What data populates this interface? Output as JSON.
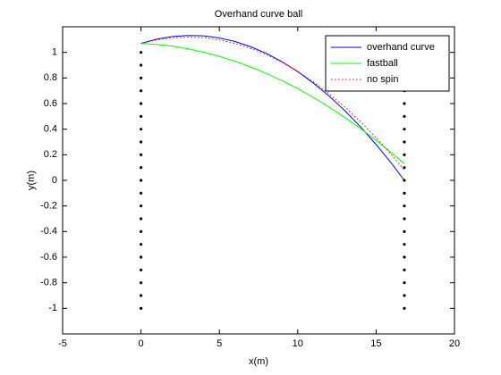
{
  "chart_data": {
    "type": "line",
    "title": "Overhand curve ball",
    "xlabel": "x(m)",
    "ylabel": "y(m)",
    "xlim": [
      -5,
      20
    ],
    "xticks": [
      -5,
      0,
      5,
      10,
      15,
      20
    ],
    "ylim": [
      -1.2,
      1.2
    ],
    "yticks": [
      -1,
      -0.8,
      -0.6,
      -0.4,
      -0.2,
      0,
      0.2,
      0.4,
      0.6,
      0.8,
      1
    ],
    "legend": "upper right",
    "series": [
      {
        "name": "overhand curve",
        "color": "#0000ff",
        "linestyle": "solid",
        "x": [
          0,
          1,
          2,
          3,
          4,
          5,
          6,
          7,
          8,
          9,
          10,
          11,
          12,
          13,
          14,
          15,
          16,
          16.8
        ],
        "values": [
          1.07,
          1.103,
          1.124,
          1.132,
          1.129,
          1.113,
          1.085,
          1.044,
          0.992,
          0.927,
          0.85,
          0.76,
          0.659,
          0.545,
          0.419,
          0.28,
          0.13,
          0
        ]
      },
      {
        "name": "fastball",
        "color": "#00ff00",
        "linestyle": "solid",
        "x": [
          0,
          1,
          2,
          3,
          4,
          5,
          6,
          7,
          8,
          9,
          10,
          11,
          12,
          13,
          14,
          15,
          16,
          16.8
        ],
        "values": [
          1.07,
          1.062,
          1.048,
          1.028,
          1.001,
          0.969,
          0.931,
          0.886,
          0.836,
          0.779,
          0.717,
          0.648,
          0.573,
          0.492,
          0.406,
          0.313,
          0.214,
          0.13
        ]
      },
      {
        "name": "no spin",
        "color": "#ff0000",
        "linestyle": "dotted",
        "x": [
          0,
          1,
          2,
          3,
          4,
          5,
          6,
          7,
          8,
          9,
          10,
          11,
          12,
          13,
          14,
          15,
          16,
          16.8
        ],
        "values": [
          1.07,
          1.097,
          1.114,
          1.119,
          1.114,
          1.097,
          1.07,
          1.031,
          0.982,
          0.922,
          0.851,
          0.769,
          0.677,
          0.573,
          0.459,
          0.333,
          0.197,
          0.08
        ]
      },
      {
        "color": "#000000",
        "marker": "dot",
        "x": [
          0,
          0,
          0,
          0,
          0,
          0,
          0,
          0,
          0,
          0,
          0,
          0,
          0,
          0,
          0,
          0,
          0,
          0,
          0,
          0,
          0
        ],
        "values": [
          -1,
          -0.9,
          -0.8,
          -0.7,
          -0.6,
          -0.5,
          -0.4,
          -0.3,
          -0.2,
          -0.1,
          0,
          0.1,
          0.2,
          0.3,
          0.4,
          0.5,
          0.6,
          0.7,
          0.8,
          0.9,
          1
        ]
      },
      {
        "color": "#000000",
        "marker": "dot",
        "x": [
          16.8,
          16.8,
          16.8,
          16.8,
          16.8,
          16.8,
          16.8,
          16.8,
          16.8,
          16.8,
          16.8,
          16.8,
          16.8,
          16.8,
          16.8,
          16.8,
          16.8,
          16.8,
          16.8,
          16.8,
          16.8
        ],
        "values": [
          -1,
          -0.9,
          -0.8,
          -0.7,
          -0.6,
          -0.5,
          -0.4,
          -0.3,
          -0.2,
          -0.1,
          0,
          0.1,
          0.2,
          0.3,
          0.4,
          0.5,
          0.6,
          0.7,
          0.8,
          0.9,
          1
        ]
      }
    ]
  }
}
